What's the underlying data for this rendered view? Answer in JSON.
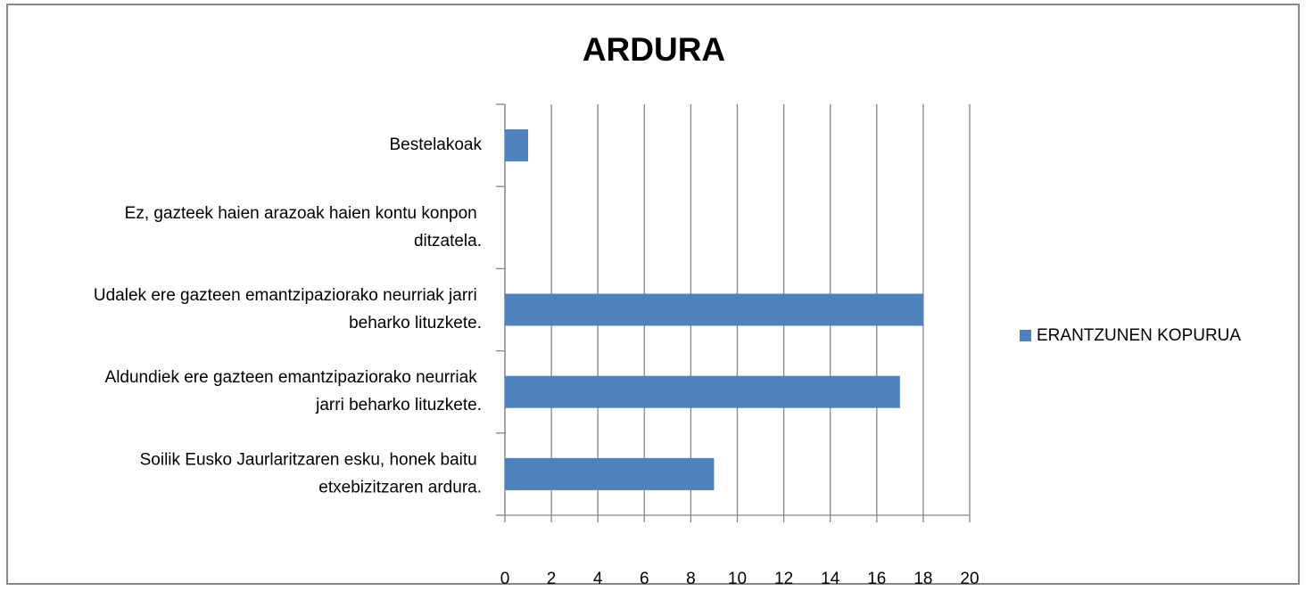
{
  "chart_data": {
    "type": "hbar",
    "title": "ARDURA",
    "categories": [
      "Bestelakoak",
      "Ez, gazteek haien arazoak haien kontu konpon ditzatela.",
      "Udalek ere gazteen emantzipaziorako neurriak jarri beharko lituzkete.",
      "Aldundiek ere gazteen emantzipaziorako neurriak jarri beharko lituzkete.",
      "Soilik Eusko Jaurlaritzaren esku, honek baitu etxebizitzaren ardura."
    ],
    "series": [
      {
        "name": "ERANTZUNEN KOPURUA",
        "color": "#4f81bd",
        "values": [
          1,
          0,
          18,
          17,
          9
        ]
      }
    ],
    "xlim": [
      0,
      20
    ],
    "xticks": [
      0,
      2,
      4,
      6,
      8,
      10,
      12,
      14,
      16,
      18,
      20
    ],
    "grid": true,
    "legend": "right"
  }
}
